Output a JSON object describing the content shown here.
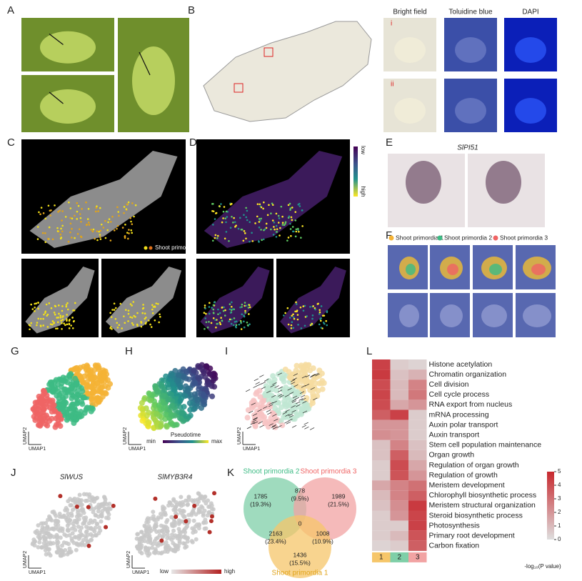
{
  "panel_labels": [
    "A",
    "B",
    "C",
    "D",
    "E",
    "F",
    "G",
    "H",
    "I",
    "J",
    "K",
    "L"
  ],
  "B": {
    "headers": [
      "Bright field",
      "Toluidine blue",
      "DAPI"
    ],
    "rows": [
      "i",
      "ii"
    ]
  },
  "C": {
    "legend": "Shoot primordia"
  },
  "D": {
    "colorbar": [
      "low",
      "high"
    ]
  },
  "E": {
    "gene": "SlPI51"
  },
  "F": {
    "legend": [
      "Shoot primordia 1",
      "Shoot primordia 2",
      "Shoot primordia 3"
    ]
  },
  "umap_axes": {
    "x": "UMAP1",
    "y": "UMAP2"
  },
  "H": {
    "colorbar_title": "Pseudotime",
    "min": "min",
    "max": "max"
  },
  "J": {
    "genes": [
      "SlWUS",
      "SlMYB3R4"
    ],
    "colorbar": [
      "low",
      "high"
    ]
  },
  "K": {
    "sets": [
      "Shoot primordia 2",
      "Shoot primordia 3",
      "Shoot primordia 1"
    ],
    "regions": [
      {
        "count": 1785,
        "pct": "(19.3%)"
      },
      {
        "count": 878,
        "pct": "(9.5%)"
      },
      {
        "count": 1989,
        "pct": "(21.5%)"
      },
      {
        "count": 2163,
        "pct": "(23.4%)"
      },
      {
        "count": 0
      },
      {
        "count": 1008,
        "pct": "(10.9%)"
      },
      {
        "count": 1436,
        "pct": "(15.5%)"
      }
    ]
  },
  "L": {
    "terms": [
      "Histone acetylation",
      "Chromatin organization",
      "Cell division",
      "Cell cycle process",
      "RNA export from nucleus",
      "mRNA processing",
      "Auxin polar transport",
      "Auxin transport",
      "Stem cell population maintenance",
      "Organ growth",
      "Regulation of organ growth",
      "Regulation of growth",
      "Meristem development",
      "Chlorophyll biosynthetic process",
      "Meristem structural organization",
      "Steroid biosynthetic process",
      "Photosynthesis",
      "Primary root development",
      "Carbon fixation"
    ],
    "columns": [
      1,
      2,
      3
    ],
    "column_colors": [
      "#f6c66a",
      "#7fcfa8",
      "#f2a3a3"
    ],
    "values": [
      [
        4.3,
        0.5,
        0.3
      ],
      [
        4.5,
        0.8,
        1.2
      ],
      [
        4.0,
        1.0,
        2.5
      ],
      [
        4.2,
        1.0,
        2.8
      ],
      [
        4.0,
        1.5,
        2.0
      ],
      [
        3.5,
        4.3,
        0.5
      ],
      [
        2.0,
        2.0,
        0.5
      ],
      [
        2.2,
        2.0,
        0.5
      ],
      [
        0.8,
        2.5,
        0.8
      ],
      [
        0.8,
        3.5,
        1.0
      ],
      [
        0.5,
        4.0,
        1.5
      ],
      [
        0.5,
        3.8,
        2.0
      ],
      [
        1.5,
        2.5,
        3.0
      ],
      [
        1.0,
        2.5,
        3.5
      ],
      [
        0.8,
        2.2,
        4.5
      ],
      [
        0.5,
        2.0,
        4.2
      ],
      [
        0.5,
        0.5,
        4.3
      ],
      [
        0.5,
        1.0,
        3.8
      ],
      [
        0.3,
        0.5,
        3.5
      ]
    ],
    "clim": [
      0,
      5
    ],
    "cticks": [
      0,
      1,
      2,
      3,
      4,
      5
    ],
    "colormap": [
      "#dedede",
      "#c7282e"
    ],
    "colorbar_label": "-log₁₀(P value)"
  }
}
